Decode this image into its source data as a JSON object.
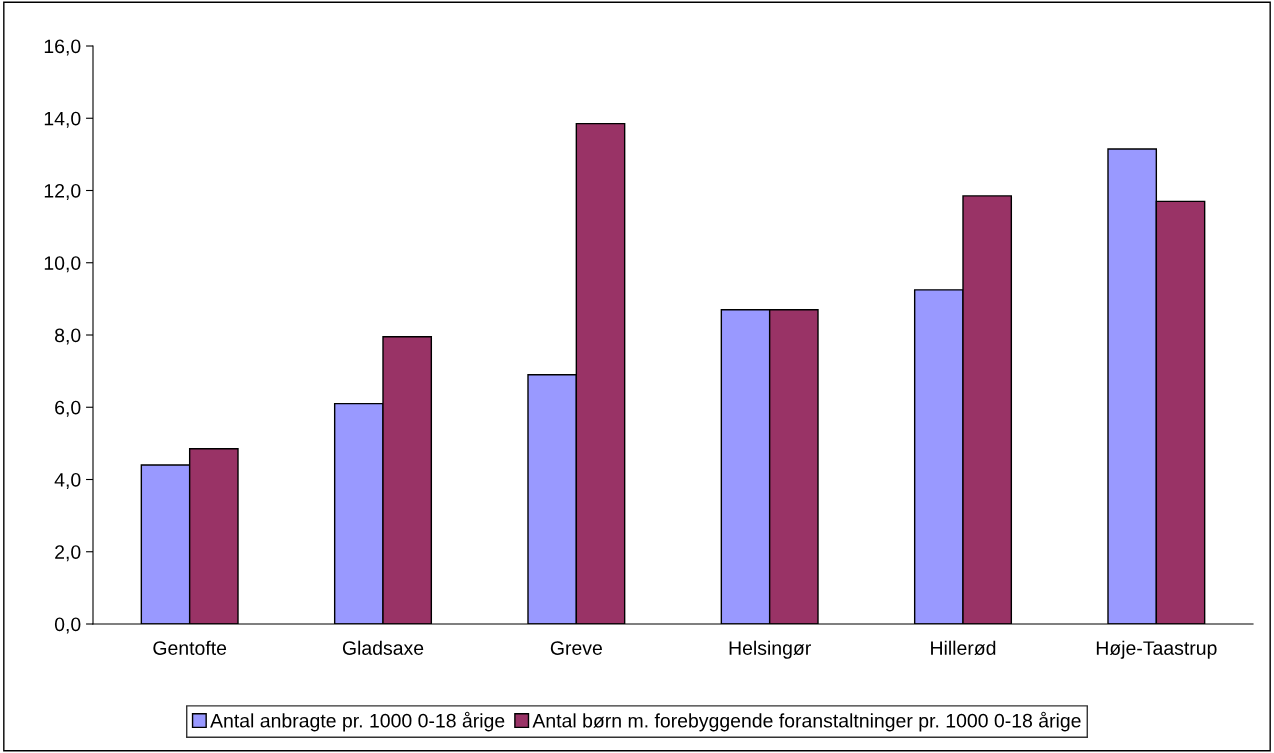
{
  "chart_data": {
    "type": "bar",
    "categories": [
      "Gentofte",
      "Gladsaxe",
      "Greve",
      "Helsingør",
      "Hillerød",
      "Høje-Taastrup"
    ],
    "series": [
      {
        "name": "Antal anbragte pr. 1000 0-18 årige",
        "color": "#9999ff",
        "values": [
          4.4,
          6.1,
          6.9,
          8.7,
          9.25,
          13.15
        ]
      },
      {
        "name": "Antal børn m. forebyggende foranstaltninger pr. 1000 0-18 årige",
        "color": "#993366",
        "values": [
          4.85,
          7.95,
          13.85,
          8.7,
          11.85,
          11.7
        ]
      }
    ],
    "ylim": [
      0,
      16
    ],
    "yticks": [
      {
        "value": 0,
        "label": "0,0"
      },
      {
        "value": 2,
        "label": "2,0"
      },
      {
        "value": 4,
        "label": "4,0"
      },
      {
        "value": 6,
        "label": "6,0"
      },
      {
        "value": 8,
        "label": "8,0"
      },
      {
        "value": 10,
        "label": "10,0"
      },
      {
        "value": 12,
        "label": "12,0"
      },
      {
        "value": 14,
        "label": "14,0"
      },
      {
        "value": 16,
        "label": "16,0"
      }
    ],
    "grid": false,
    "legend": "bottom"
  }
}
